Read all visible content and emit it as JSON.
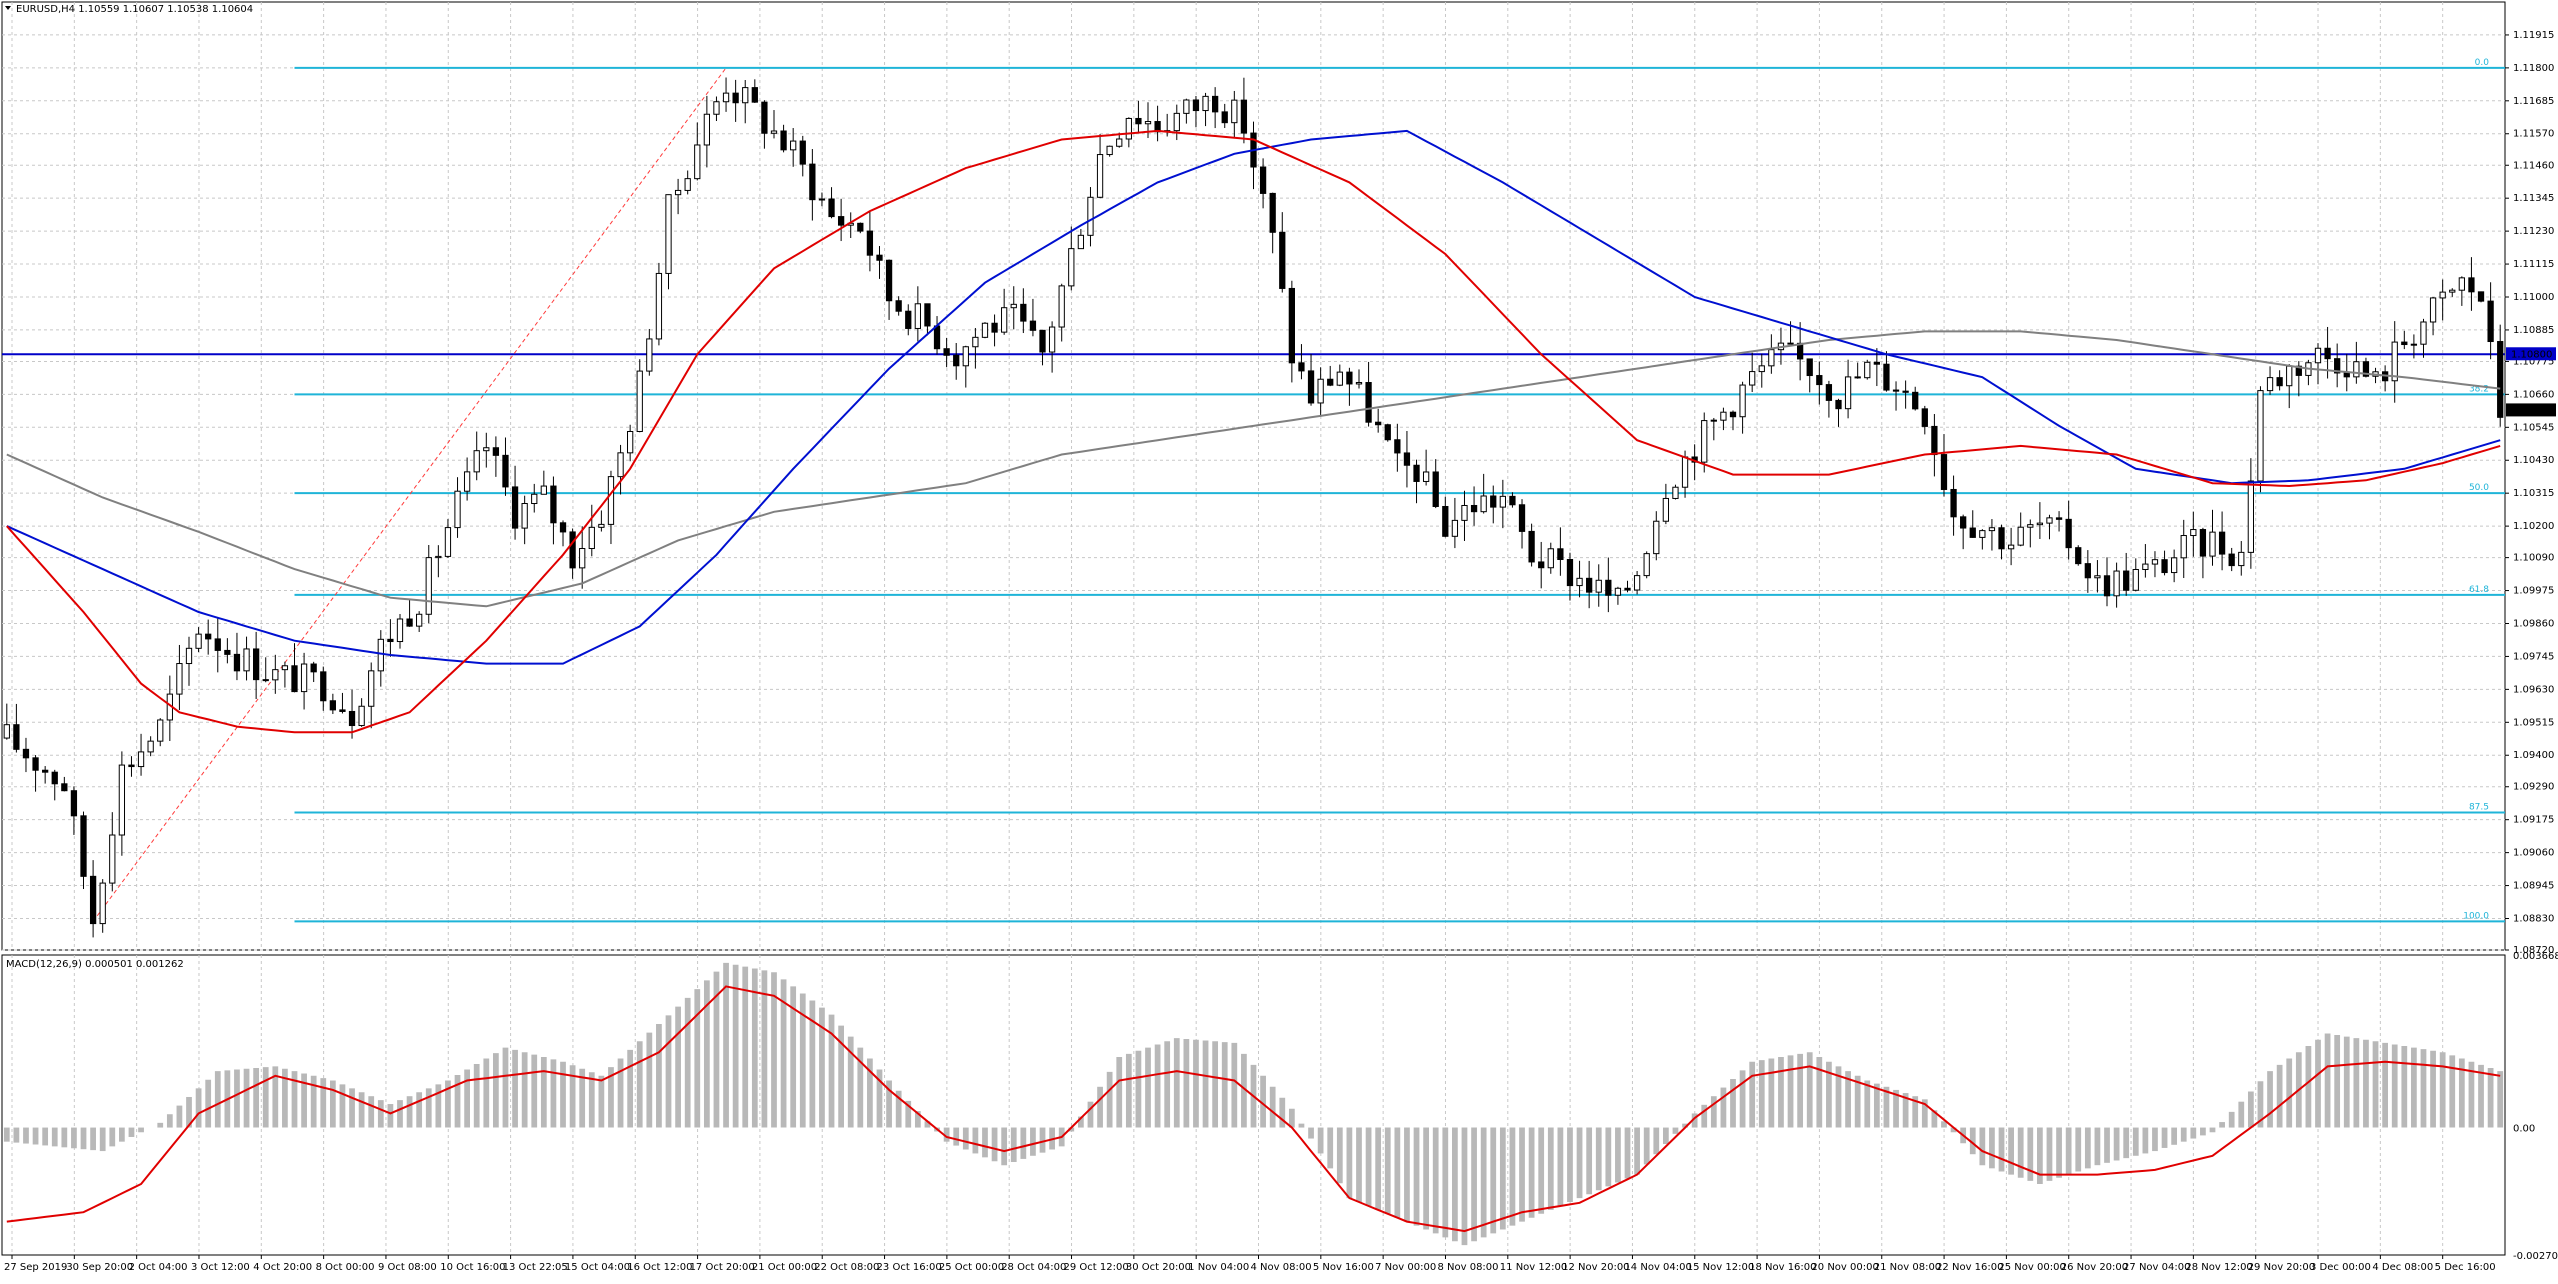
{
  "chart_data": {
    "type": "candlestick",
    "symbol_header": "EURUSD,H4  1.10559 1.10607 1.10538 1.10604",
    "current_price_label": "1.10604",
    "hline_price_label": "1.10800",
    "price_axis": {
      "ylim": [
        1.0872,
        1.1203
      ],
      "ticks": [
        "1.11915",
        "1.11800",
        "1.11685",
        "1.11570",
        "1.11460",
        "1.11345",
        "1.11230",
        "1.11115",
        "1.11000",
        "1.10885",
        "1.10775",
        "1.10660",
        "1.10545",
        "1.10430",
        "1.10315",
        "1.10200",
        "1.10090",
        "1.09975",
        "1.09860",
        "1.09745",
        "1.09630",
        "1.09515",
        "1.09400",
        "1.09290",
        "1.09175",
        "1.09060",
        "1.08945",
        "1.08830",
        "1.08720"
      ]
    },
    "fib_levels": [
      {
        "label": "0.0",
        "price": 1.118
      },
      {
        "label": "38.2",
        "price": 1.1066
      },
      {
        "label": "50.0",
        "price": 1.10315
      },
      {
        "label": "61.8",
        "price": 1.0996
      },
      {
        "label": "87.5",
        "price": 1.092
      },
      {
        "label": "100.0",
        "price": 1.0882
      }
    ],
    "horizontal_line": {
      "price": 1.108,
      "color": "#0000c8"
    },
    "colors": {
      "ma_fast": "#e00000",
      "ma_slow": "#0010d0",
      "ma_long": "#808080",
      "fib": "#1fb4d8",
      "trend": "#ff3b3b",
      "macd_hist": "#b8b8b8",
      "macd_signal": "#e00000",
      "grid": "#c8c8c8"
    },
    "trend_line": {
      "from": {
        "index": 9,
        "price": 1.0882
      },
      "to": {
        "index": 75,
        "price": 1.118
      }
    },
    "x_labels": [
      "27 Sep 2019",
      "30 Sep 20:00",
      "2 Oct 04:00",
      "3 Oct 12:00",
      "4 Oct 20:00",
      "8 Oct 00:00",
      "9 Oct 08:00",
      "10 Oct 16:00",
      "13 Oct 22:05",
      "15 Oct 04:00",
      "16 Oct 12:00",
      "17 Oct 20:00",
      "21 Oct 00:00",
      "22 Oct 08:00",
      "23 Oct 16:00",
      "25 Oct 00:00",
      "28 Oct 04:00",
      "29 Oct 12:00",
      "30 Oct 20:00",
      "1 Nov 04:00",
      "4 Nov 08:00",
      "5 Nov 16:00",
      "7 Nov 00:00",
      "8 Nov 08:00",
      "11 Nov 12:00",
      "12 Nov 20:00",
      "14 Nov 04:00",
      "15 Nov 12:00",
      "18 Nov 16:00",
      "20 Nov 00:00",
      "21 Nov 08:00",
      "22 Nov 16:00",
      "25 Nov 00:00",
      "26 Nov 20:00",
      "27 Nov 04:00",
      "28 Nov 12:00",
      "29 Nov 20:00",
      "3 Dec 00:00",
      "4 Dec 08:00",
      "5 Dec 16:00"
    ],
    "price_path": [
      [
        0,
        1.0946
      ],
      [
        6,
        1.093
      ],
      [
        9,
        1.0883
      ],
      [
        12,
        1.0935
      ],
      [
        16,
        1.095
      ],
      [
        20,
        1.0985
      ],
      [
        24,
        1.0975
      ],
      [
        28,
        1.0968
      ],
      [
        33,
        1.0965
      ],
      [
        36,
        1.0955
      ],
      [
        39,
        1.0978
      ],
      [
        43,
        1.0995
      ],
      [
        47,
        1.1028
      ],
      [
        50,
        1.1048
      ],
      [
        53,
        1.1025
      ],
      [
        56,
        1.103
      ],
      [
        59,
        1.101
      ],
      [
        62,
        1.1025
      ],
      [
        64,
        1.1045
      ],
      [
        66,
        1.107
      ],
      [
        69,
        1.113
      ],
      [
        72,
        1.1155
      ],
      [
        75,
        1.1175
      ],
      [
        78,
        1.1165
      ],
      [
        82,
        1.115
      ],
      [
        86,
        1.1128
      ],
      [
        89,
        1.1125
      ],
      [
        92,
        1.11
      ],
      [
        96,
        1.109
      ],
      [
        99,
        1.108
      ],
      [
        102,
        1.109
      ],
      [
        105,
        1.1092
      ],
      [
        108,
        1.108
      ],
      [
        111,
        1.1115
      ],
      [
        114,
        1.115
      ],
      [
        117,
        1.1165
      ],
      [
        120,
        1.116
      ],
      [
        123,
        1.1165
      ],
      [
        126,
        1.117
      ],
      [
        129,
        1.116
      ],
      [
        132,
        1.112
      ],
      [
        134,
        1.108
      ],
      [
        136,
        1.1065
      ],
      [
        139,
        1.1075
      ],
      [
        142,
        1.106
      ],
      [
        145,
        1.104
      ],
      [
        147,
        1.104
      ],
      [
        150,
        1.102
      ],
      [
        153,
        1.1028
      ],
      [
        156,
        1.103
      ],
      [
        159,
        1.101
      ],
      [
        162,
        1.1005
      ],
      [
        165,
        1.1
      ],
      [
        168,
        1.0993
      ],
      [
        170,
        1.1005
      ],
      [
        173,
        1.1035
      ],
      [
        176,
        1.1048
      ],
      [
        179,
        1.106
      ],
      [
        182,
        1.1072
      ],
      [
        185,
        1.108
      ],
      [
        188,
        1.1076
      ],
      [
        191,
        1.1066
      ],
      [
        194,
        1.1075
      ],
      [
        197,
        1.107
      ],
      [
        200,
        1.106
      ],
      [
        203,
        1.1025
      ],
      [
        206,
        1.102
      ],
      [
        209,
        1.1015
      ],
      [
        212,
        1.102
      ],
      [
        215,
        1.1015
      ],
      [
        218,
        1.1
      ],
      [
        221,
        1.1002
      ],
      [
        224,
        1.1005
      ],
      [
        227,
        1.1012
      ],
      [
        230,
        1.1015
      ],
      [
        233,
        1.101
      ],
      [
        235,
        1.1068
      ],
      [
        238,
        1.1075
      ],
      [
        241,
        1.108
      ],
      [
        244,
        1.1078
      ],
      [
        247,
        1.107
      ],
      [
        250,
        1.1085
      ],
      [
        253,
        1.1095
      ],
      [
        256,
        1.1105
      ],
      [
        258,
        1.11
      ],
      [
        260,
        1.106
      ]
    ],
    "ma_fast_path": [
      [
        0,
        1.102
      ],
      [
        8,
        1.099
      ],
      [
        14,
        1.0965
      ],
      [
        18,
        1.0955
      ],
      [
        24,
        1.095
      ],
      [
        30,
        1.0948
      ],
      [
        36,
        1.0948
      ],
      [
        42,
        1.0955
      ],
      [
        50,
        1.098
      ],
      [
        58,
        1.101
      ],
      [
        65,
        1.104
      ],
      [
        72,
        1.108
      ],
      [
        80,
        1.111
      ],
      [
        90,
        1.113
      ],
      [
        100,
        1.1145
      ],
      [
        110,
        1.1155
      ],
      [
        120,
        1.1158
      ],
      [
        130,
        1.1155
      ],
      [
        140,
        1.114
      ],
      [
        150,
        1.1115
      ],
      [
        160,
        1.108
      ],
      [
        170,
        1.105
      ],
      [
        180,
        1.1038
      ],
      [
        190,
        1.1038
      ],
      [
        200,
        1.1045
      ],
      [
        210,
        1.1048
      ],
      [
        220,
        1.1045
      ],
      [
        230,
        1.1035
      ],
      [
        238,
        1.1034
      ],
      [
        246,
        1.1036
      ],
      [
        254,
        1.1042
      ],
      [
        260,
        1.1048
      ]
    ],
    "ma_slow_path": [
      [
        0,
        1.102
      ],
      [
        10,
        1.1005
      ],
      [
        20,
        1.099
      ],
      [
        30,
        1.098
      ],
      [
        40,
        1.0975
      ],
      [
        50,
        1.0972
      ],
      [
        58,
        1.0972
      ],
      [
        66,
        1.0985
      ],
      [
        74,
        1.101
      ],
      [
        82,
        1.104
      ],
      [
        92,
        1.1075
      ],
      [
        102,
        1.1105
      ],
      [
        112,
        1.1125
      ],
      [
        120,
        1.114
      ],
      [
        128,
        1.115
      ],
      [
        136,
        1.1155
      ],
      [
        146,
        1.1158
      ],
      [
        156,
        1.114
      ],
      [
        166,
        1.112
      ],
      [
        176,
        1.11
      ],
      [
        186,
        1.109
      ],
      [
        196,
        1.108
      ],
      [
        206,
        1.1072
      ],
      [
        214,
        1.1055
      ],
      [
        222,
        1.104
      ],
      [
        232,
        1.1035
      ],
      [
        240,
        1.1036
      ],
      [
        250,
        1.104
      ],
      [
        260,
        1.105
      ]
    ],
    "ma_long_path": [
      [
        0,
        1.1045
      ],
      [
        10,
        1.103
      ],
      [
        20,
        1.1018
      ],
      [
        30,
        1.1005
      ],
      [
        40,
        1.0995
      ],
      [
        50,
        1.0992
      ],
      [
        60,
        1.1
      ],
      [
        70,
        1.1015
      ],
      [
        80,
        1.1025
      ],
      [
        90,
        1.103
      ],
      [
        100,
        1.1035
      ],
      [
        110,
        1.1045
      ],
      [
        120,
        1.105
      ],
      [
        130,
        1.1055
      ],
      [
        140,
        1.106
      ],
      [
        150,
        1.1065
      ],
      [
        160,
        1.107
      ],
      [
        170,
        1.1075
      ],
      [
        180,
        1.108
      ],
      [
        190,
        1.1085
      ],
      [
        200,
        1.1088
      ],
      [
        210,
        1.1088
      ],
      [
        220,
        1.1085
      ],
      [
        230,
        1.108
      ],
      [
        240,
        1.1075
      ],
      [
        250,
        1.1072
      ],
      [
        260,
        1.1068
      ]
    ],
    "macd": {
      "label": "MACD(12,26,9) 0.000501 0.001262",
      "ylim": [
        -0.002709,
        0.003668
      ],
      "ticks": [
        "0.003668",
        "0.00",
        "-0.002709"
      ],
      "hist_path": [
        [
          0,
          -0.0003
        ],
        [
          10,
          -0.0005
        ],
        [
          16,
          0.0001
        ],
        [
          22,
          0.0012
        ],
        [
          28,
          0.0013
        ],
        [
          34,
          0.001
        ],
        [
          40,
          0.0005
        ],
        [
          46,
          0.001
        ],
        [
          52,
          0.0017
        ],
        [
          58,
          0.0014
        ],
        [
          62,
          0.0011
        ],
        [
          68,
          0.0022
        ],
        [
          75,
          0.0035
        ],
        [
          80,
          0.0033
        ],
        [
          86,
          0.0024
        ],
        [
          92,
          0.001
        ],
        [
          98,
          -0.0003
        ],
        [
          104,
          -0.0008
        ],
        [
          110,
          -0.0004
        ],
        [
          116,
          0.0015
        ],
        [
          122,
          0.0019
        ],
        [
          128,
          0.0018
        ],
        [
          134,
          0.0004
        ],
        [
          140,
          -0.0015
        ],
        [
          146,
          -0.002
        ],
        [
          152,
          -0.0025
        ],
        [
          158,
          -0.002
        ],
        [
          164,
          -0.0015
        ],
        [
          170,
          -0.001
        ],
        [
          176,
          0.0003
        ],
        [
          182,
          0.0014
        ],
        [
          188,
          0.0016
        ],
        [
          194,
          0.001
        ],
        [
          200,
          0.0006
        ],
        [
          206,
          -0.0008
        ],
        [
          212,
          -0.0012
        ],
        [
          218,
          -0.0008
        ],
        [
          224,
          -0.0005
        ],
        [
          230,
          -0.0001
        ],
        [
          236,
          0.0012
        ],
        [
          242,
          0.002
        ],
        [
          248,
          0.0018
        ],
        [
          254,
          0.0016
        ],
        [
          260,
          0.0012
        ]
      ],
      "signal_path": [
        [
          0,
          -0.002
        ],
        [
          8,
          -0.0018
        ],
        [
          14,
          -0.0012
        ],
        [
          20,
          0.0003
        ],
        [
          28,
          0.0011
        ],
        [
          34,
          0.0008
        ],
        [
          40,
          0.0003
        ],
        [
          48,
          0.001
        ],
        [
          56,
          0.0012
        ],
        [
          62,
          0.001
        ],
        [
          68,
          0.0016
        ],
        [
          75,
          0.003
        ],
        [
          80,
          0.0028
        ],
        [
          86,
          0.002
        ],
        [
          92,
          0.0008
        ],
        [
          98,
          -0.0002
        ],
        [
          104,
          -0.0005
        ],
        [
          110,
          -0.0002
        ],
        [
          116,
          0.001
        ],
        [
          122,
          0.0012
        ],
        [
          128,
          0.001
        ],
        [
          134,
          0.0
        ],
        [
          140,
          -0.0015
        ],
        [
          146,
          -0.002
        ],
        [
          152,
          -0.0022
        ],
        [
          158,
          -0.0018
        ],
        [
          164,
          -0.0016
        ],
        [
          170,
          -0.001
        ],
        [
          176,
          0.0002
        ],
        [
          182,
          0.0011
        ],
        [
          188,
          0.0013
        ],
        [
          194,
          0.0009
        ],
        [
          200,
          0.0005
        ],
        [
          206,
          -0.0005
        ],
        [
          212,
          -0.001
        ],
        [
          218,
          -0.001
        ],
        [
          224,
          -0.0009
        ],
        [
          230,
          -0.0006
        ],
        [
          236,
          0.0003
        ],
        [
          242,
          0.0013
        ],
        [
          248,
          0.0014
        ],
        [
          254,
          0.0013
        ],
        [
          260,
          0.0011
        ]
      ]
    },
    "candle_count": 261,
    "grid": true
  }
}
